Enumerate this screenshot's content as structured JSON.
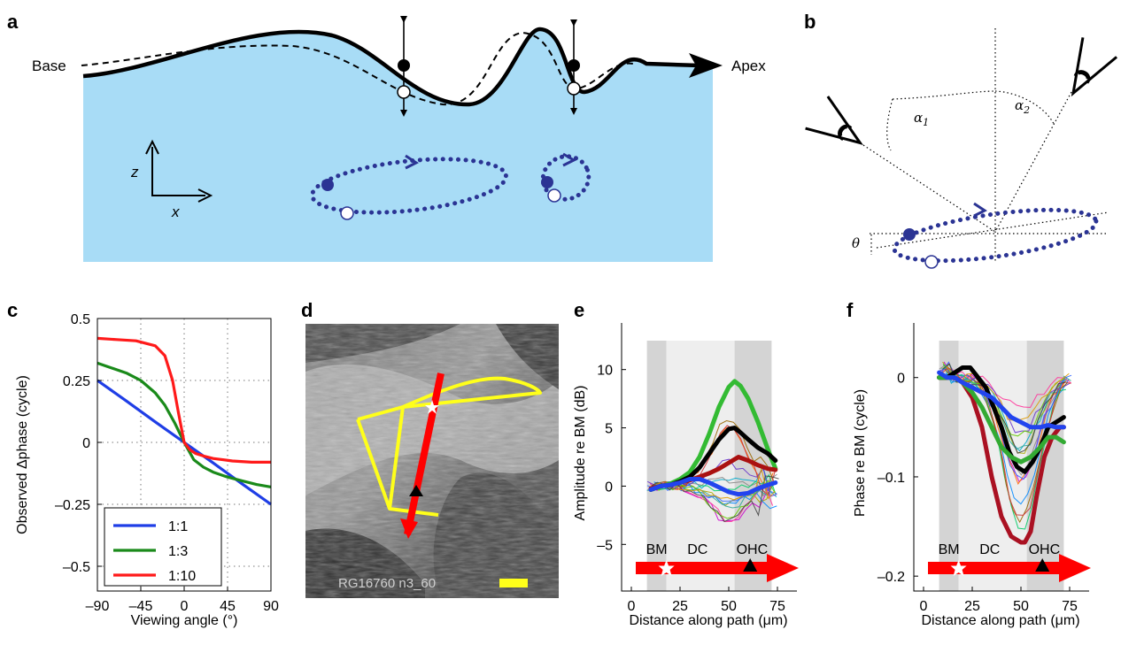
{
  "panels": {
    "a": {
      "label": "a",
      "base_label": "Base",
      "apex_label": "Apex",
      "axis_z": "z",
      "axis_x": "x",
      "fluid_color": "#a8dcf6",
      "orbit_color": "#2b3494"
    },
    "b": {
      "label": "b",
      "alpha1": "α",
      "alpha1_sub": "1",
      "alpha2": "α",
      "alpha2_sub": "2",
      "theta": "θ"
    },
    "c": {
      "label": "c"
    },
    "d": {
      "label": "d",
      "caption": "RG16760 n3_60",
      "outline_color": "#ffff1a",
      "path_color": "#ff0000"
    },
    "e": {
      "label": "e"
    },
    "f": {
      "label": "f"
    }
  },
  "chart_data": [
    {
      "panel": "c",
      "type": "line",
      "xlabel": "Viewing angle (°)",
      "ylabel": "Observed Δphase (cycle)",
      "xlim": [
        -90,
        90
      ],
      "ylim": [
        -0.6,
        0.5
      ],
      "xticks": [
        -90,
        -45,
        0,
        45,
        90
      ],
      "xtick_labels": [
        "–90",
        "–45",
        "0",
        "45",
        "90"
      ],
      "yticks": [
        0.5,
        0.25,
        0,
        -0.25,
        -0.5
      ],
      "ytick_labels": [
        "0.5",
        "0.25",
        "0",
        "–0.25",
        "–0.5"
      ],
      "grid": true,
      "legend": "bottom-left",
      "series": [
        {
          "name": "1:1",
          "color": "#1f3ee6",
          "x": [
            -90,
            -60,
            -30,
            0,
            30,
            60,
            90
          ],
          "y": [
            0.25,
            0.167,
            0.083,
            0,
            -0.083,
            -0.167,
            -0.25
          ]
        },
        {
          "name": "1:3",
          "color": "#1a8a1a",
          "x": [
            -90,
            -75,
            -60,
            -45,
            -30,
            -20,
            -10,
            0,
            10,
            20,
            30,
            45,
            60,
            75,
            90
          ],
          "y": [
            0.32,
            0.3,
            0.28,
            0.25,
            0.2,
            0.15,
            0.08,
            0,
            -0.07,
            -0.1,
            -0.12,
            -0.14,
            -0.155,
            -0.17,
            -0.18
          ]
        },
        {
          "name": "1:10",
          "color": "#ff1a1a",
          "x": [
            -90,
            -70,
            -50,
            -30,
            -20,
            -12,
            -6,
            0,
            6,
            12,
            20,
            30,
            50,
            70,
            90
          ],
          "y": [
            0.42,
            0.415,
            0.41,
            0.39,
            0.35,
            0.25,
            0.12,
            0,
            -0.03,
            -0.045,
            -0.055,
            -0.065,
            -0.075,
            -0.08,
            -0.08
          ]
        }
      ]
    },
    {
      "panel": "e",
      "type": "line",
      "xlabel": "Distance along path (μm)",
      "ylabel": "Amplitude re BM (dB)",
      "xlim": [
        -5,
        85
      ],
      "ylim": [
        -9,
        14
      ],
      "xticks": [
        0,
        25,
        50,
        75
      ],
      "xtick_labels": [
        "0",
        "25",
        "50",
        "75"
      ],
      "yticks": [
        10,
        5,
        0,
        -5
      ],
      "ytick_labels": [
        "10",
        "5",
        "0",
        "–5"
      ],
      "regions": [
        {
          "x0": 8,
          "x1": 18,
          "shade": "#d4d4d4"
        },
        {
          "x0": 18,
          "x1": 53,
          "shade": "#eeeeee"
        },
        {
          "x0": 53,
          "x1": 72,
          "shade": "#d4d4d4"
        }
      ],
      "region_labels": [
        {
          "text": "BM",
          "x": 13
        },
        {
          "text": "DC",
          "x": 34
        },
        {
          "text": "OHC",
          "x": 62
        }
      ],
      "thick_series": [
        {
          "color": "#33bb33",
          "x": [
            10,
            15,
            20,
            25,
            30,
            35,
            40,
            45,
            50,
            53,
            56,
            60,
            65,
            70,
            74
          ],
          "y": [
            -0.3,
            0,
            0.2,
            0.6,
            1.2,
            2.5,
            4.5,
            6.8,
            8.5,
            9,
            8.6,
            7.5,
            5.5,
            3.2,
            1.5
          ]
        },
        {
          "color": "#000000",
          "x": [
            10,
            15,
            20,
            25,
            30,
            35,
            40,
            45,
            50,
            53,
            56,
            60,
            65,
            70,
            74
          ],
          "y": [
            -0.3,
            0,
            0.1,
            0.4,
            0.8,
            1.6,
            2.8,
            4,
            4.9,
            5,
            4.6,
            4,
            3.3,
            2.8,
            2.2
          ]
        },
        {
          "color": "#aa1111",
          "x": [
            10,
            15,
            20,
            25,
            30,
            35,
            40,
            45,
            50,
            55,
            60,
            65,
            70,
            74
          ],
          "y": [
            -0.2,
            0,
            0.1,
            0.3,
            0.5,
            0.8,
            1.1,
            1.5,
            2,
            2.5,
            2.2,
            1.8,
            1.5,
            1.4
          ]
        },
        {
          "color": "#2244ee",
          "x": [
            10,
            15,
            20,
            25,
            30,
            35,
            40,
            45,
            50,
            55,
            60,
            65,
            70,
            74
          ],
          "y": [
            -0.3,
            0,
            0.1,
            0.3,
            0.6,
            0.6,
            0.3,
            -0.1,
            -0.5,
            -0.7,
            -0.6,
            -0.2,
            0.1,
            0.3
          ]
        }
      ]
    },
    {
      "panel": "f",
      "type": "line",
      "xlabel": "Distance along path (μm)",
      "ylabel": "Phase re BM (cycle)",
      "xlim": [
        -5,
        85
      ],
      "ylim": [
        -0.215,
        0.055
      ],
      "xticks": [
        0,
        25,
        50,
        75
      ],
      "xtick_labels": [
        "0",
        "25",
        "50",
        "75"
      ],
      "yticks": [
        0,
        -0.1,
        -0.2
      ],
      "ytick_labels": [
        "0",
        "–0.1",
        "–0.2"
      ],
      "regions": [
        {
          "x0": 8,
          "x1": 18,
          "shade": "#d4d4d4"
        },
        {
          "x0": 18,
          "x1": 53,
          "shade": "#eeeeee"
        },
        {
          "x0": 53,
          "x1": 72,
          "shade": "#d4d4d4"
        }
      ],
      "region_labels": [
        {
          "text": "BM",
          "x": 13
        },
        {
          "text": "DC",
          "x": 34
        },
        {
          "text": "OHC",
          "x": 62
        }
      ],
      "thick_series": [
        {
          "color": "#aa1122",
          "x": [
            8,
            12,
            16,
            20,
            25,
            30,
            35,
            40,
            45,
            50,
            52,
            55,
            58,
            62,
            66,
            70,
            72
          ],
          "y": [
            0,
            0,
            0,
            -0.005,
            -0.02,
            -0.05,
            -0.1,
            -0.14,
            -0.16,
            -0.166,
            -0.166,
            -0.155,
            -0.12,
            -0.08,
            -0.06,
            -0.05,
            -0.05
          ]
        },
        {
          "color": "#000000",
          "x": [
            8,
            12,
            16,
            20,
            24,
            28,
            32,
            36,
            40,
            44,
            48,
            52,
            56,
            60,
            64,
            68,
            72
          ],
          "y": [
            0,
            0,
            0.005,
            0.01,
            0.01,
            0,
            -0.01,
            -0.03,
            -0.05,
            -0.075,
            -0.09,
            -0.095,
            -0.085,
            -0.07,
            -0.05,
            -0.045,
            -0.04
          ]
        },
        {
          "color": "#33aa33",
          "x": [
            8,
            12,
            16,
            20,
            25,
            30,
            35,
            40,
            45,
            50,
            55,
            60,
            64,
            68,
            72
          ],
          "y": [
            0,
            0,
            0,
            -0.005,
            -0.015,
            -0.03,
            -0.05,
            -0.07,
            -0.08,
            -0.085,
            -0.08,
            -0.07,
            -0.06,
            -0.06,
            -0.065
          ]
        },
        {
          "color": "#2244ee",
          "x": [
            8,
            12,
            16,
            20,
            25,
            30,
            35,
            40,
            45,
            50,
            55,
            60,
            64,
            68,
            72
          ],
          "y": [
            0.005,
            0,
            0,
            -0.005,
            -0.01,
            -0.015,
            -0.02,
            -0.03,
            -0.04,
            -0.045,
            -0.05,
            -0.05,
            -0.048,
            -0.05,
            -0.05
          ]
        }
      ]
    }
  ]
}
